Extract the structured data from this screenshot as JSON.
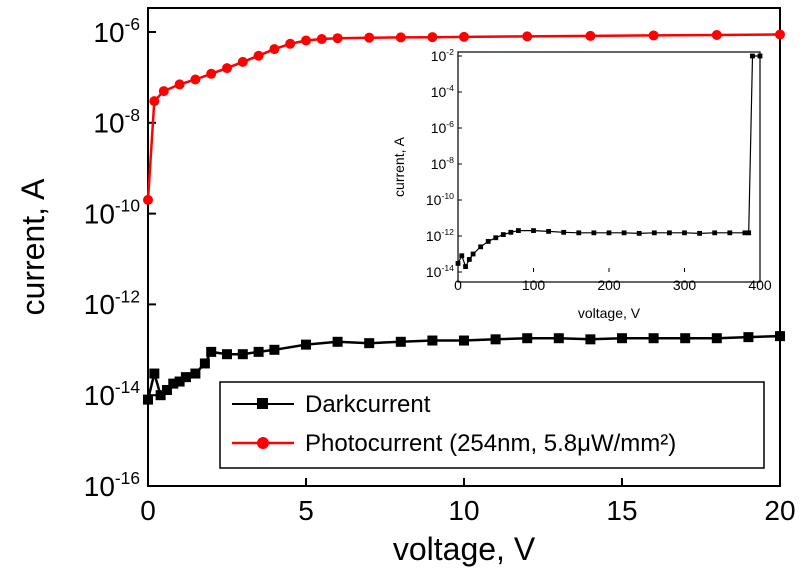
{
  "chart_data": [
    {
      "type": "line",
      "xlabel": "voltage, V",
      "ylabel": "current, A",
      "xlim": [
        0,
        20
      ],
      "ylim": [
        1e-16,
        1e-06
      ],
      "y_scale": "log",
      "x_ticks": [
        "0",
        "5",
        "10",
        "15",
        "20"
      ],
      "y_ticks": [
        {
          "base": "10",
          "exp": "-6"
        },
        {
          "base": "10",
          "exp": "-8"
        },
        {
          "base": "10",
          "exp": "-10"
        },
        {
          "base": "10",
          "exp": "-12"
        },
        {
          "base": "10",
          "exp": "-14"
        },
        {
          "base": "10",
          "exp": "-16"
        }
      ],
      "grid": false,
      "legend_position": "bottom-right",
      "series": [
        {
          "name": "Darkcurrent",
          "color": "#000000",
          "marker": "square",
          "x": [
            0,
            0.2,
            0.4,
            0.6,
            0.8,
            1.0,
            1.2,
            1.5,
            1.8,
            2.0,
            2.5,
            3.0,
            3.5,
            4.0,
            5.0,
            6.0,
            7.0,
            8.0,
            9.0,
            10.0,
            11.0,
            12.0,
            13.0,
            14.0,
            15.0,
            16.0,
            17.0,
            18.0,
            19.0,
            20.0
          ],
          "y": [
            8e-15,
            3e-14,
            1e-14,
            1.3e-14,
            1.8e-14,
            2e-14,
            2.5e-14,
            3e-14,
            5e-14,
            9e-14,
            8e-14,
            8e-14,
            9e-14,
            1e-13,
            1.3e-13,
            1.5e-13,
            1.4e-13,
            1.5e-13,
            1.6e-13,
            1.6e-13,
            1.7e-13,
            1.8e-13,
            1.8e-13,
            1.7e-13,
            1.8e-13,
            1.8e-13,
            1.8e-13,
            1.8e-13,
            1.9e-13,
            2e-13
          ]
        },
        {
          "name": "Photocurrent (254nm, 5.8μW/mm²)",
          "color": "#ff0000",
          "marker": "circle",
          "x": [
            0,
            0.2,
            0.5,
            1.0,
            1.5,
            2.0,
            2.5,
            3.0,
            3.5,
            4.0,
            4.5,
            5.0,
            5.5,
            6.0,
            7.0,
            8.0,
            9.0,
            10.0,
            12.0,
            14.0,
            16.0,
            18.0,
            20.0
          ],
          "y": [
            2e-10,
            3e-08,
            5e-08,
            7e-08,
            9e-08,
            1.2e-07,
            1.6e-07,
            2.2e-07,
            3e-07,
            4.2e-07,
            5.5e-07,
            6.5e-07,
            7e-07,
            7.3e-07,
            7.5e-07,
            7.6e-07,
            7.7e-07,
            7.8e-07,
            8e-07,
            8.2e-07,
            8.4e-07,
            8.6e-07,
            8.8e-07
          ]
        }
      ]
    },
    {
      "type": "line",
      "xlabel": "voltage, V",
      "ylabel": "current, A",
      "xlim": [
        0,
        400
      ],
      "ylim": [
        1e-14,
        0.01
      ],
      "y_scale": "log",
      "x_ticks": [
        "0",
        "100",
        "200",
        "300",
        "400"
      ],
      "y_ticks": [
        {
          "base": "10",
          "exp": "-2"
        },
        {
          "base": "10",
          "exp": "-4"
        },
        {
          "base": "10",
          "exp": "-6"
        },
        {
          "base": "10",
          "exp": "-8"
        },
        {
          "base": "10",
          "exp": "-10"
        },
        {
          "base": "10",
          "exp": "-12"
        },
        {
          "base": "10",
          "exp": "-14"
        }
      ],
      "grid": false,
      "series": [
        {
          "color": "#000000",
          "marker": "square",
          "x": [
            0,
            5,
            10,
            15,
            20,
            30,
            40,
            50,
            60,
            70,
            80,
            100,
            120,
            140,
            160,
            180,
            200,
            220,
            240,
            260,
            280,
            300,
            320,
            340,
            360,
            380,
            385,
            390,
            400
          ],
          "y": [
            3e-14,
            8e-14,
            2e-14,
            5e-14,
            1e-13,
            2.5e-13,
            5e-13,
            8e-13,
            1.2e-12,
            1.6e-12,
            2e-12,
            2e-12,
            1.8e-12,
            1.6e-12,
            1.5e-12,
            1.5e-12,
            1.5e-12,
            1.5e-12,
            1.4e-12,
            1.5e-12,
            1.5e-12,
            1.5e-12,
            1.4e-12,
            1.5e-12,
            1.5e-12,
            1.5e-12,
            1.5e-12,
            0.01,
            0.01
          ]
        }
      ]
    }
  ]
}
